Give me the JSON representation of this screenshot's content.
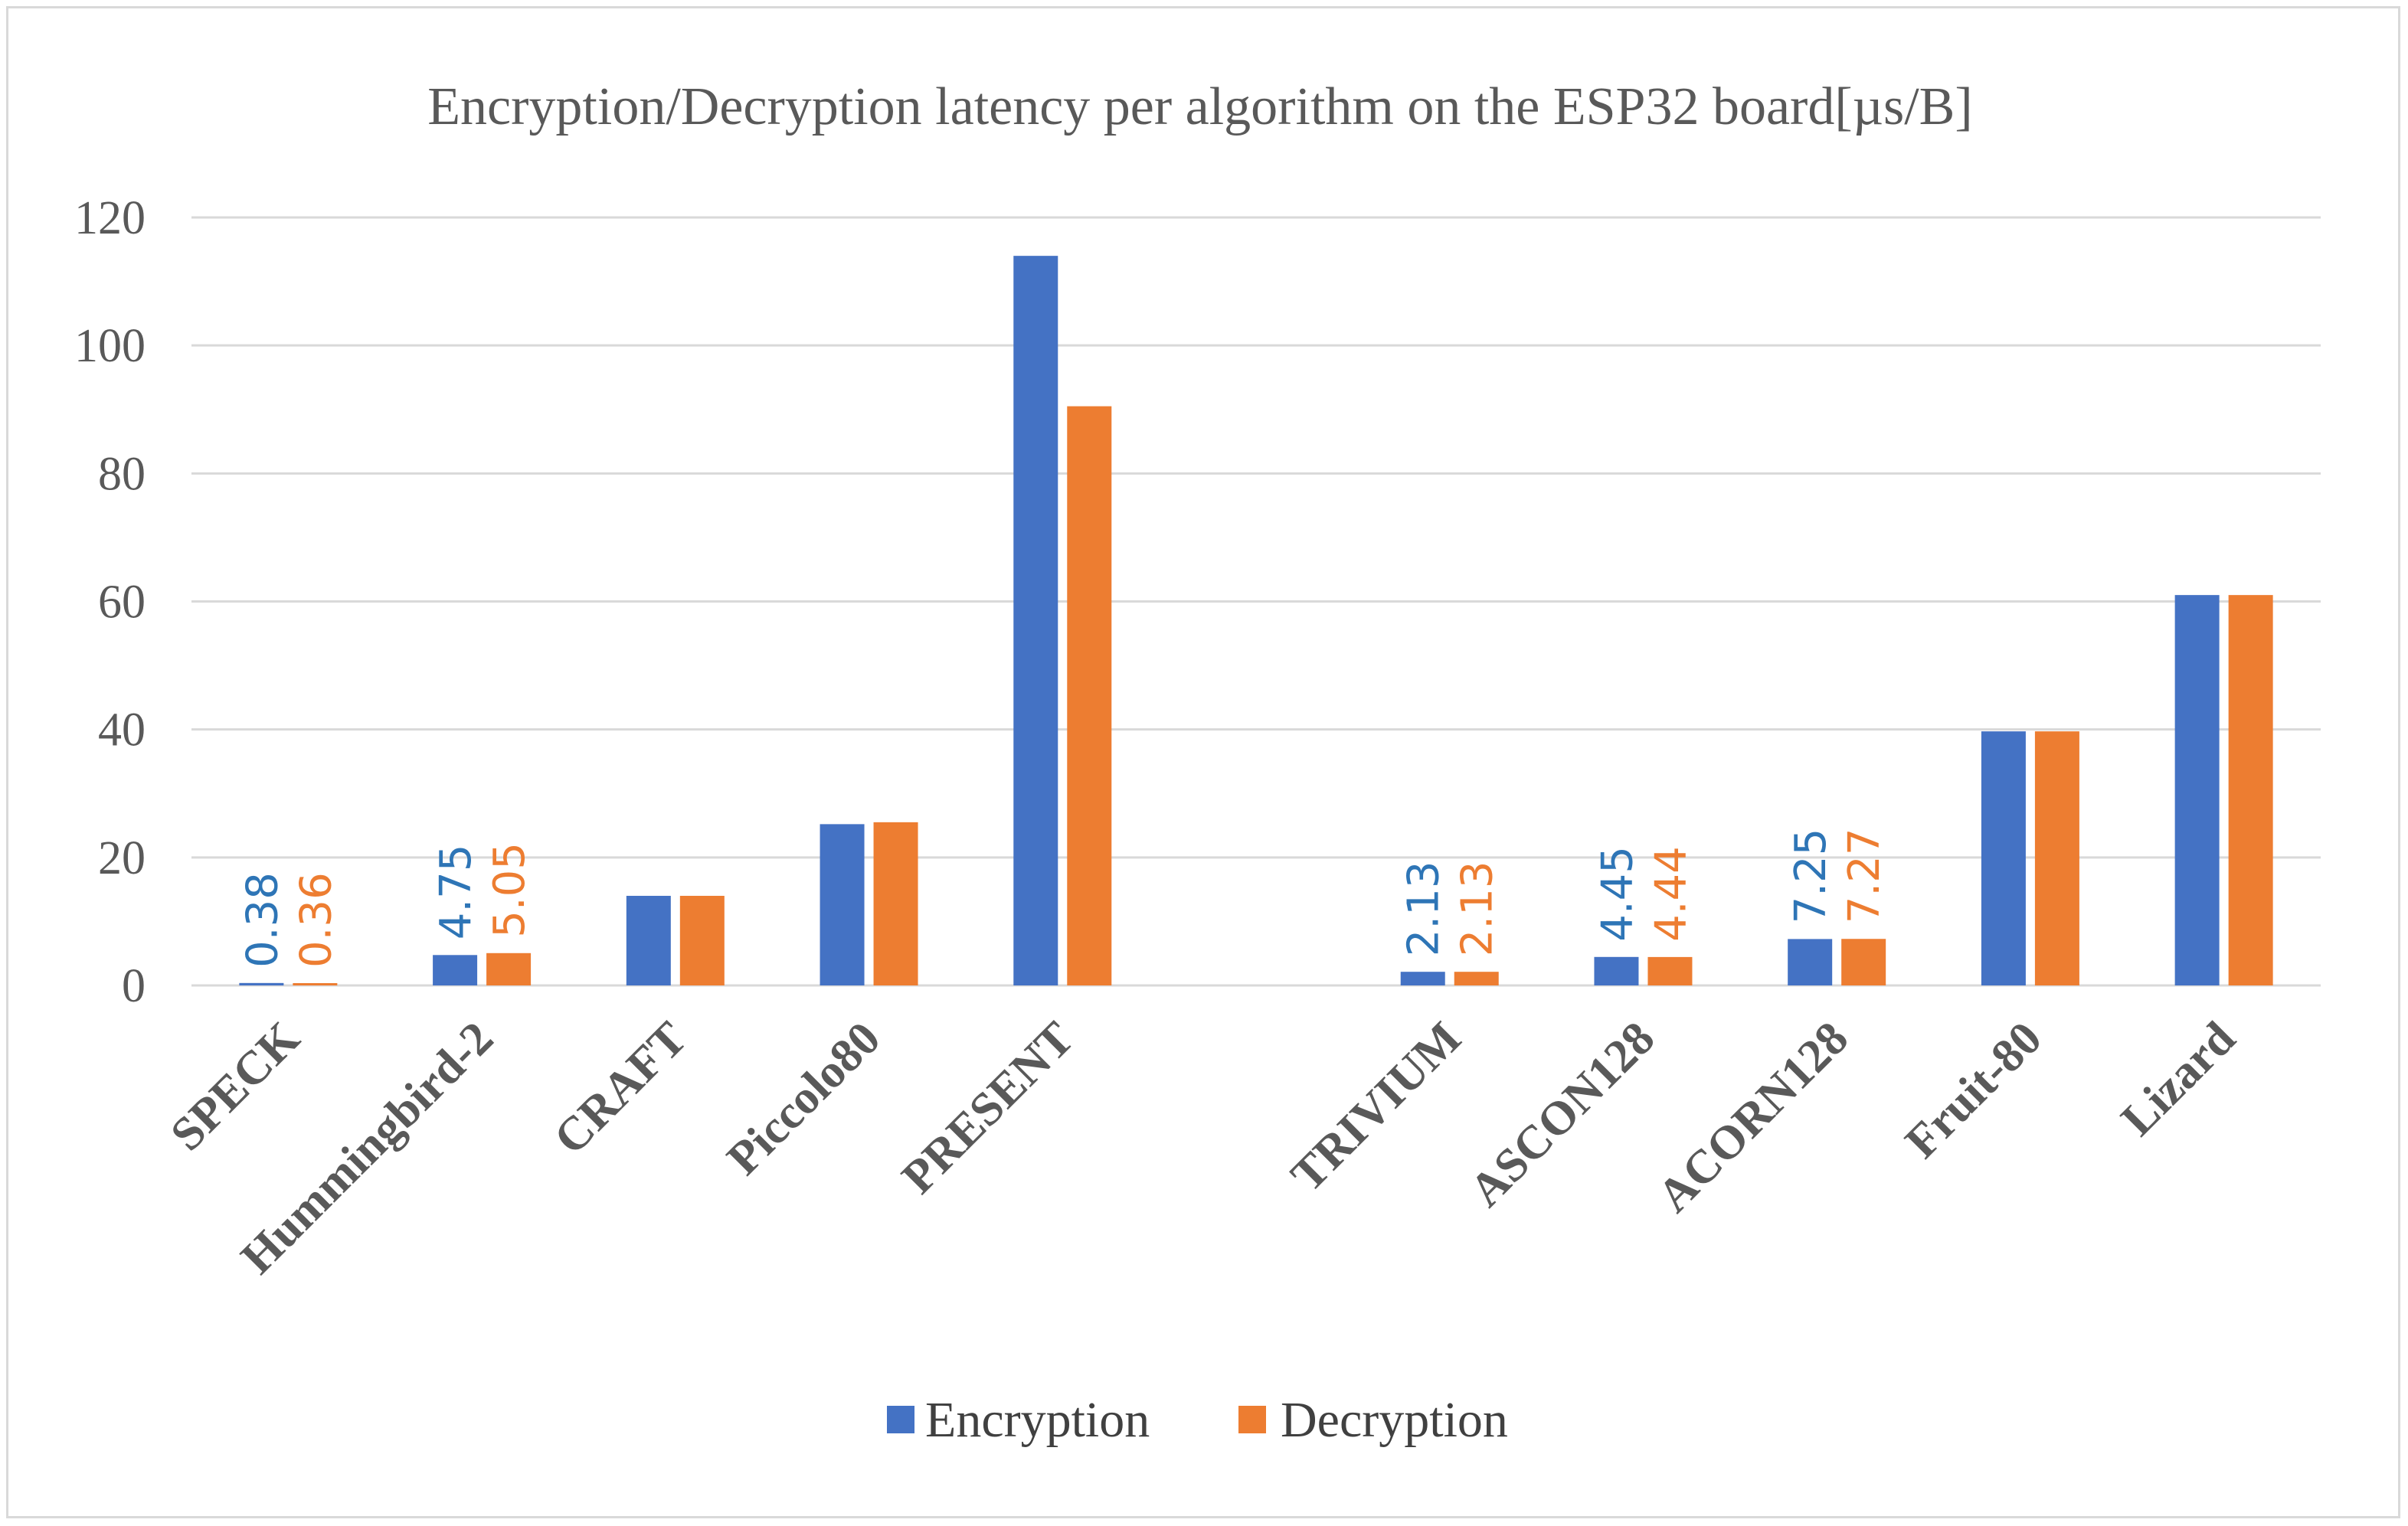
{
  "chart_data": {
    "type": "bar",
    "title": "Encryption/Decryption latency per algorithm on the ESP32 board[µs/B]",
    "xlabel": "",
    "ylabel": "",
    "ylim": [
      0,
      120
    ],
    "yticks": [
      0,
      20,
      40,
      60,
      80,
      100,
      120
    ],
    "grid": true,
    "legend_position": "bottom",
    "categories": [
      "SPECK",
      "Hummingbird-2",
      "CRAFT",
      "Piccolo80",
      "PRESENT",
      "",
      "TRIVIUM",
      "ASCON128",
      "ACORN128",
      "Fruit-80",
      "Lizard"
    ],
    "series": [
      {
        "name": "Encryption",
        "color": "#4472C4",
        "label_color": "#2E75B6",
        "values": [
          0.38,
          4.75,
          14,
          25.2,
          114,
          null,
          2.13,
          4.45,
          7.25,
          39.7,
          61
        ],
        "data_labels": [
          "0.38",
          "4.75",
          null,
          null,
          null,
          null,
          "2.13",
          "4.45",
          "7.25",
          null,
          null
        ]
      },
      {
        "name": "Decryption",
        "color": "#ED7D31",
        "label_color": "#ED7D31",
        "values": [
          0.36,
          5.05,
          14,
          25.5,
          90.5,
          null,
          2.13,
          4.44,
          7.27,
          39.7,
          61
        ],
        "data_labels": [
          "0.36",
          "5.05",
          null,
          null,
          null,
          null,
          "2.13",
          "4.44",
          "7.27",
          null,
          null
        ]
      }
    ]
  }
}
